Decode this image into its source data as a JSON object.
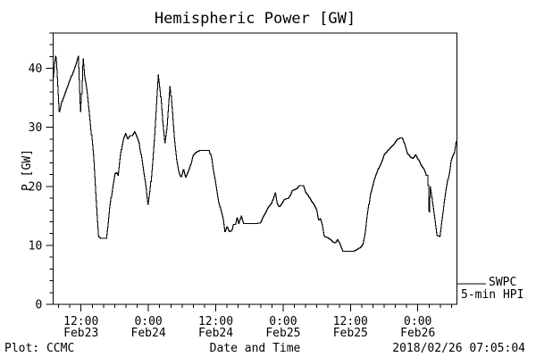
{
  "chart_data": {
    "type": "line",
    "title": "Hemispheric Power [GW]",
    "xlabel": "Date and Time",
    "ylabel": "P [GW]",
    "ylim": [
      0,
      46
    ],
    "yticks": [
      0,
      10,
      20,
      30,
      40
    ],
    "y_minor_step": 2,
    "x_range_hours": [
      0,
      72
    ],
    "x_ticks": [
      {
        "hours": 5,
        "time": "12:00",
        "date": "Feb23"
      },
      {
        "hours": 17,
        "time": "0:00",
        "date": "Feb24"
      },
      {
        "hours": 29,
        "time": "12:00",
        "date": "Feb24"
      },
      {
        "hours": 41,
        "time": "0:00",
        "date": "Feb25"
      },
      {
        "hours": 53,
        "time": "12:00",
        "date": "Feb25"
      },
      {
        "hours": 65,
        "time": "0:00",
        "date": "Feb26"
      }
    ],
    "x_minor_ticks_odd_hours_step": 2,
    "grid": false,
    "line_color": "#000000",
    "background": "#ffffff",
    "legend": [
      {
        "label": "SWPC"
      },
      {
        "label": "5-min HPI"
      }
    ],
    "legend_position": "right-outside",
    "series": [
      {
        "name": "5-min HPI",
        "units": "GW",
        "points_hours_vs_gw": [
          [
            0.0,
            38.5
          ],
          [
            0.2,
            40.5
          ],
          [
            0.45,
            42.3
          ],
          [
            0.6,
            41.0
          ],
          [
            1.1,
            32.4
          ],
          [
            1.6,
            34.5
          ],
          [
            2.2,
            36.0
          ],
          [
            2.8,
            37.5
          ],
          [
            3.4,
            39.0
          ],
          [
            4.0,
            40.5
          ],
          [
            4.5,
            42.1
          ],
          [
            4.9,
            32.4
          ],
          [
            5.1,
            36.0
          ],
          [
            5.3,
            42.0
          ],
          [
            5.6,
            38.6
          ],
          [
            6.0,
            36.5
          ],
          [
            6.6,
            31.1
          ],
          [
            7.2,
            25.0
          ],
          [
            7.7,
            17.0
          ],
          [
            8.1,
            11.5
          ],
          [
            8.5,
            11.2
          ],
          [
            9.5,
            11.2
          ],
          [
            9.8,
            13.5
          ],
          [
            10.1,
            16.5
          ],
          [
            10.4,
            18.5
          ],
          [
            10.7,
            20.5
          ],
          [
            11.0,
            22.1
          ],
          [
            11.3,
            22.4
          ],
          [
            11.6,
            21.8
          ],
          [
            11.9,
            24.5
          ],
          [
            12.2,
            26.5
          ],
          [
            12.5,
            28.0
          ],
          [
            12.9,
            29.0
          ],
          [
            13.3,
            28.0
          ],
          [
            13.7,
            28.6
          ],
          [
            14.1,
            28.6
          ],
          [
            14.5,
            29.3
          ],
          [
            14.9,
            28.5
          ],
          [
            15.3,
            27.5
          ],
          [
            15.7,
            25.2
          ],
          [
            16.1,
            22.6
          ],
          [
            16.5,
            20.2
          ],
          [
            16.9,
            16.8
          ],
          [
            17.3,
            19.5
          ],
          [
            17.7,
            24.0
          ],
          [
            18.1,
            29.0
          ],
          [
            18.45,
            34.5
          ],
          [
            18.75,
            38.9
          ],
          [
            19.1,
            36.0
          ],
          [
            19.5,
            31.0
          ],
          [
            19.9,
            27.3
          ],
          [
            20.3,
            30.0
          ],
          [
            20.6,
            34.0
          ],
          [
            20.85,
            37.1
          ],
          [
            21.2,
            33.0
          ],
          [
            21.6,
            28.0
          ],
          [
            22.0,
            24.6
          ],
          [
            22.4,
            22.5
          ],
          [
            22.8,
            21.5
          ],
          [
            23.2,
            23.0
          ],
          [
            23.6,
            21.5
          ],
          [
            24.0,
            22.3
          ],
          [
            24.4,
            23.3
          ],
          [
            24.9,
            25.2
          ],
          [
            25.5,
            25.8
          ],
          [
            26.2,
            26.1
          ],
          [
            27.8,
            26.1
          ],
          [
            28.2,
            24.9
          ],
          [
            28.5,
            22.9
          ],
          [
            28.9,
            20.9
          ],
          [
            29.2,
            19.1
          ],
          [
            29.5,
            17.4
          ],
          [
            29.9,
            15.9
          ],
          [
            30.3,
            14.4
          ],
          [
            30.6,
            12.2
          ],
          [
            31.0,
            13.2
          ],
          [
            31.4,
            12.3
          ],
          [
            31.8,
            12.5
          ],
          [
            32.1,
            13.5
          ],
          [
            32.5,
            13.6
          ],
          [
            32.8,
            14.8
          ],
          [
            33.1,
            13.6
          ],
          [
            33.5,
            15.0
          ],
          [
            33.9,
            13.7
          ],
          [
            35.0,
            13.7
          ],
          [
            36.2,
            13.7
          ],
          [
            36.9,
            13.8
          ],
          [
            37.4,
            14.8
          ],
          [
            38.0,
            15.8
          ],
          [
            38.4,
            16.5
          ],
          [
            38.9,
            17.2
          ],
          [
            39.3,
            18.1
          ],
          [
            39.6,
            19.0
          ],
          [
            39.9,
            17.2
          ],
          [
            40.3,
            16.5
          ],
          [
            40.8,
            17.2
          ],
          [
            41.2,
            17.8
          ],
          [
            42.0,
            18.0
          ],
          [
            42.6,
            19.3
          ],
          [
            43.4,
            19.6
          ],
          [
            43.9,
            20.1
          ],
          [
            44.6,
            20.1
          ],
          [
            45.0,
            19.0
          ],
          [
            45.5,
            18.4
          ],
          [
            46.0,
            17.5
          ],
          [
            46.5,
            16.9
          ],
          [
            47.0,
            15.9
          ],
          [
            47.3,
            14.3
          ],
          [
            47.6,
            14.5
          ],
          [
            47.9,
            13.6
          ],
          [
            48.3,
            11.5
          ],
          [
            49.0,
            11.3
          ],
          [
            49.8,
            10.6
          ],
          [
            50.3,
            10.4
          ],
          [
            50.7,
            11.0
          ],
          [
            51.0,
            10.4
          ],
          [
            51.6,
            9.0
          ],
          [
            53.5,
            9.0
          ],
          [
            54.2,
            9.3
          ],
          [
            54.8,
            9.7
          ],
          [
            55.2,
            10.2
          ],
          [
            55.6,
            12.1
          ],
          [
            55.9,
            14.6
          ],
          [
            56.2,
            16.6
          ],
          [
            56.5,
            18.6
          ],
          [
            56.8,
            19.6
          ],
          [
            57.2,
            21.1
          ],
          [
            57.6,
            22.1
          ],
          [
            58.0,
            23.1
          ],
          [
            58.5,
            24.1
          ],
          [
            59.0,
            25.4
          ],
          [
            59.5,
            25.9
          ],
          [
            60.1,
            26.6
          ],
          [
            60.7,
            27.1
          ],
          [
            61.2,
            27.8
          ],
          [
            61.7,
            28.2
          ],
          [
            62.2,
            28.2
          ],
          [
            62.7,
            27.0
          ],
          [
            63.1,
            25.7
          ],
          [
            63.6,
            25.0
          ],
          [
            64.1,
            24.7
          ],
          [
            64.6,
            25.4
          ],
          [
            65.1,
            24.5
          ],
          [
            65.6,
            23.5
          ],
          [
            66.1,
            22.9
          ],
          [
            66.5,
            21.9
          ],
          [
            66.8,
            21.9
          ],
          [
            66.95,
            14.2
          ],
          [
            67.15,
            20.0
          ],
          [
            67.5,
            17.9
          ],
          [
            67.8,
            15.9
          ],
          [
            68.1,
            13.9
          ],
          [
            68.4,
            11.7
          ],
          [
            68.9,
            11.5
          ],
          [
            69.2,
            13.9
          ],
          [
            69.5,
            15.9
          ],
          [
            69.7,
            17.5
          ],
          [
            70.0,
            19.4
          ],
          [
            70.3,
            21.0
          ],
          [
            70.6,
            22.4
          ],
          [
            70.9,
            24.4
          ],
          [
            71.2,
            25.2
          ],
          [
            71.5,
            25.7
          ],
          [
            71.8,
            27.5
          ],
          [
            72.0,
            27.7
          ]
        ]
      }
    ]
  },
  "footer": {
    "credit": "Plot: CCMC",
    "timestamp": "2018/02/26 07:05:04"
  }
}
